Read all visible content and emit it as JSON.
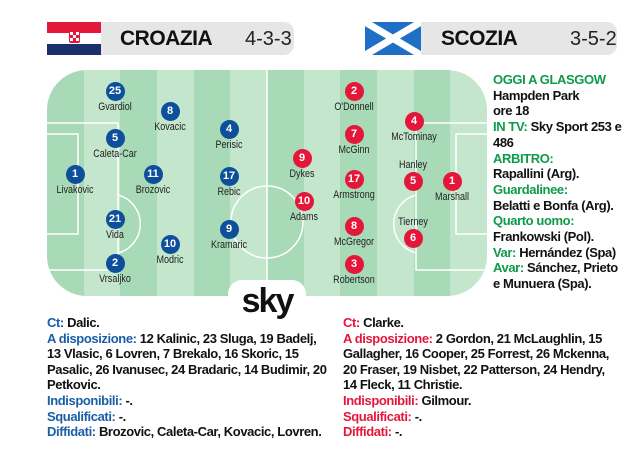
{
  "home": {
    "name": "CROAZIA",
    "formation": "4-3-3",
    "flag": "croatia-flag",
    "color": "#0d4f9a",
    "players": [
      {
        "num": "25",
        "name": "Gvardiol"
      },
      {
        "num": "8",
        "name": "Kovacic"
      },
      {
        "num": "5",
        "name": "Caleta-Car"
      },
      {
        "num": "1",
        "name": "Livakovic"
      },
      {
        "num": "11",
        "name": "Brozovic"
      },
      {
        "num": "21",
        "name": "Vida"
      },
      {
        "num": "10",
        "name": "Modric"
      },
      {
        "num": "2",
        "name": "Vrsaljko"
      },
      {
        "num": "4",
        "name": "Perisic"
      },
      {
        "num": "17",
        "name": "Rebic"
      },
      {
        "num": "9",
        "name": "Kramaric"
      }
    ],
    "ct_label": "Ct:",
    "ct": "Dalic.",
    "bench_label": "A disposizione:",
    "bench": "12 Kalinic, 23 Sluga, 19 Badelj, 13 Vlasic, 6 Lovren, 7 Brekalo, 16 Skoric, 15 Pasalic, 26 Ivanusec, 24 Bradaric, 14 Budimir, 20 Petkovic.",
    "unavail_label": "Indisponibili:",
    "unavail": "-.",
    "susp_label": "Squalificati:",
    "susp": "-.",
    "warned_label": "Diffidati:",
    "warned": "Brozovic, Caleta-Car, Kovacic, Lovren."
  },
  "away": {
    "name": "SCOZIA",
    "formation": "3-5-2",
    "flag": "scotland-flag",
    "color": "#e4173b",
    "players": [
      {
        "num": "9",
        "name": "Dykes"
      },
      {
        "num": "10",
        "name": "Adams"
      },
      {
        "num": "2",
        "name": "O'Donnell"
      },
      {
        "num": "7",
        "name": "McGinn"
      },
      {
        "num": "17",
        "name": "Armstrong"
      },
      {
        "num": "8",
        "name": "McGregor"
      },
      {
        "num": "3",
        "name": "Robertson"
      },
      {
        "num": "4",
        "name": "McTominay"
      },
      {
        "num": "5",
        "name": "Hanley"
      },
      {
        "num": "1",
        "name": "Marshall"
      },
      {
        "num": "6",
        "name": "Tierney"
      }
    ],
    "ct_label": "Ct:",
    "ct": "Clarke.",
    "bench_label": "A disposizione:",
    "bench": "2 Gordon, 21 McLaughlin, 15 Gallagher, 16 Cooper, 25 Forrest, 26 Mckenna, 20 Fraser, 19 Nisbet, 22 Patterson, 24 Hendry, 14 Fleck, 11 Christie.",
    "unavail_label": "Indisponibili:",
    "unavail": "Gilmour.",
    "susp_label": "Squalificati:",
    "susp": "-.",
    "warned_label": "Diffidati:",
    "warned": "-."
  },
  "info": {
    "venue_label": "OGGI A GLASGOW",
    "venue": "Hampden Park",
    "time": "ore 18",
    "tv_label": "IN TV:",
    "tv": "Sky Sport 253 e 486",
    "ref_label": "ARBITRO:",
    "ref": "Rapallini (Arg).",
    "lines_label": "Guardalinee:",
    "lines": "Belatti e Bonfa (Arg).",
    "fourth_label": "Quarto uomo:",
    "fourth": "Frankowski (Pol).",
    "var_label": "Var:",
    "var": "Hernández (Spa)",
    "avar_label": "Avar:",
    "avar": "Sánchez, Prieto e Munuera (Spa)."
  },
  "broadcaster_logo": "sky",
  "colors": {
    "pitch_light": "#c3e6cc",
    "pitch_dark": "#a9dab7",
    "accent_green": "#0f9a4a"
  }
}
